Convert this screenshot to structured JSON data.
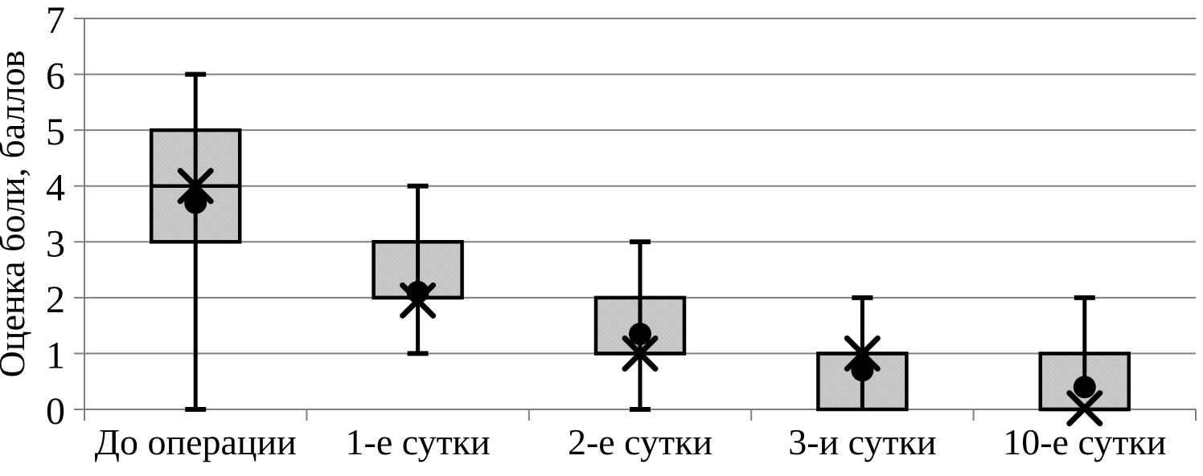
{
  "chart_data": {
    "type": "box",
    "title": "",
    "xlabel": "",
    "ylabel": "Оценка боли, баллов",
    "ylim": [
      0,
      7
    ],
    "yticks": [
      0,
      1,
      2,
      3,
      4,
      5,
      6,
      7
    ],
    "grid": true,
    "legend": false,
    "categories": [
      "До операции",
      "1-е сутки",
      "2-е сутки",
      "3-и сутки",
      "10-е сутки"
    ],
    "boxes": [
      {
        "category": "До операции",
        "whisker_low": 0,
        "q1": 3,
        "median": 4,
        "q3": 5,
        "whisker_high": 6,
        "marker_x": 4.0,
        "marker_dot": 3.7,
        "cap_low": true,
        "cap_high": true
      },
      {
        "category": "1-е сутки",
        "whisker_low": 1,
        "q1": 2,
        "median": 2,
        "q3": 3,
        "whisker_high": 4,
        "marker_x": 1.95,
        "marker_dot": 2.1,
        "cap_low": true,
        "cap_high": true
      },
      {
        "category": "2-е сутки",
        "whisker_low": 0,
        "q1": 1,
        "median": 1,
        "q3": 2,
        "whisker_high": 3,
        "marker_x": 1.0,
        "marker_dot": 1.35,
        "cap_low": true,
        "cap_high": true
      },
      {
        "category": "3-и сутки",
        "whisker_low": 0,
        "q1": 0,
        "median": 1,
        "q3": 1,
        "whisker_high": 2,
        "marker_x": 1.0,
        "marker_dot": 0.7,
        "cap_low": false,
        "cap_high": true
      },
      {
        "category": "10-е сутки",
        "whisker_low": 0.4,
        "q1": 0,
        "median": 0,
        "q3": 1,
        "whisker_high": 2,
        "marker_x": 0.02,
        "marker_dot": 0.4,
        "cap_low": false,
        "cap_high": true
      }
    ],
    "colors": {
      "box_fill": "#c9c9c9",
      "box_border": "#000000",
      "whisker": "#000000",
      "marker": "#000000",
      "grid": "#808080",
      "axis": "#7f7f7f",
      "text": "#000000"
    }
  }
}
